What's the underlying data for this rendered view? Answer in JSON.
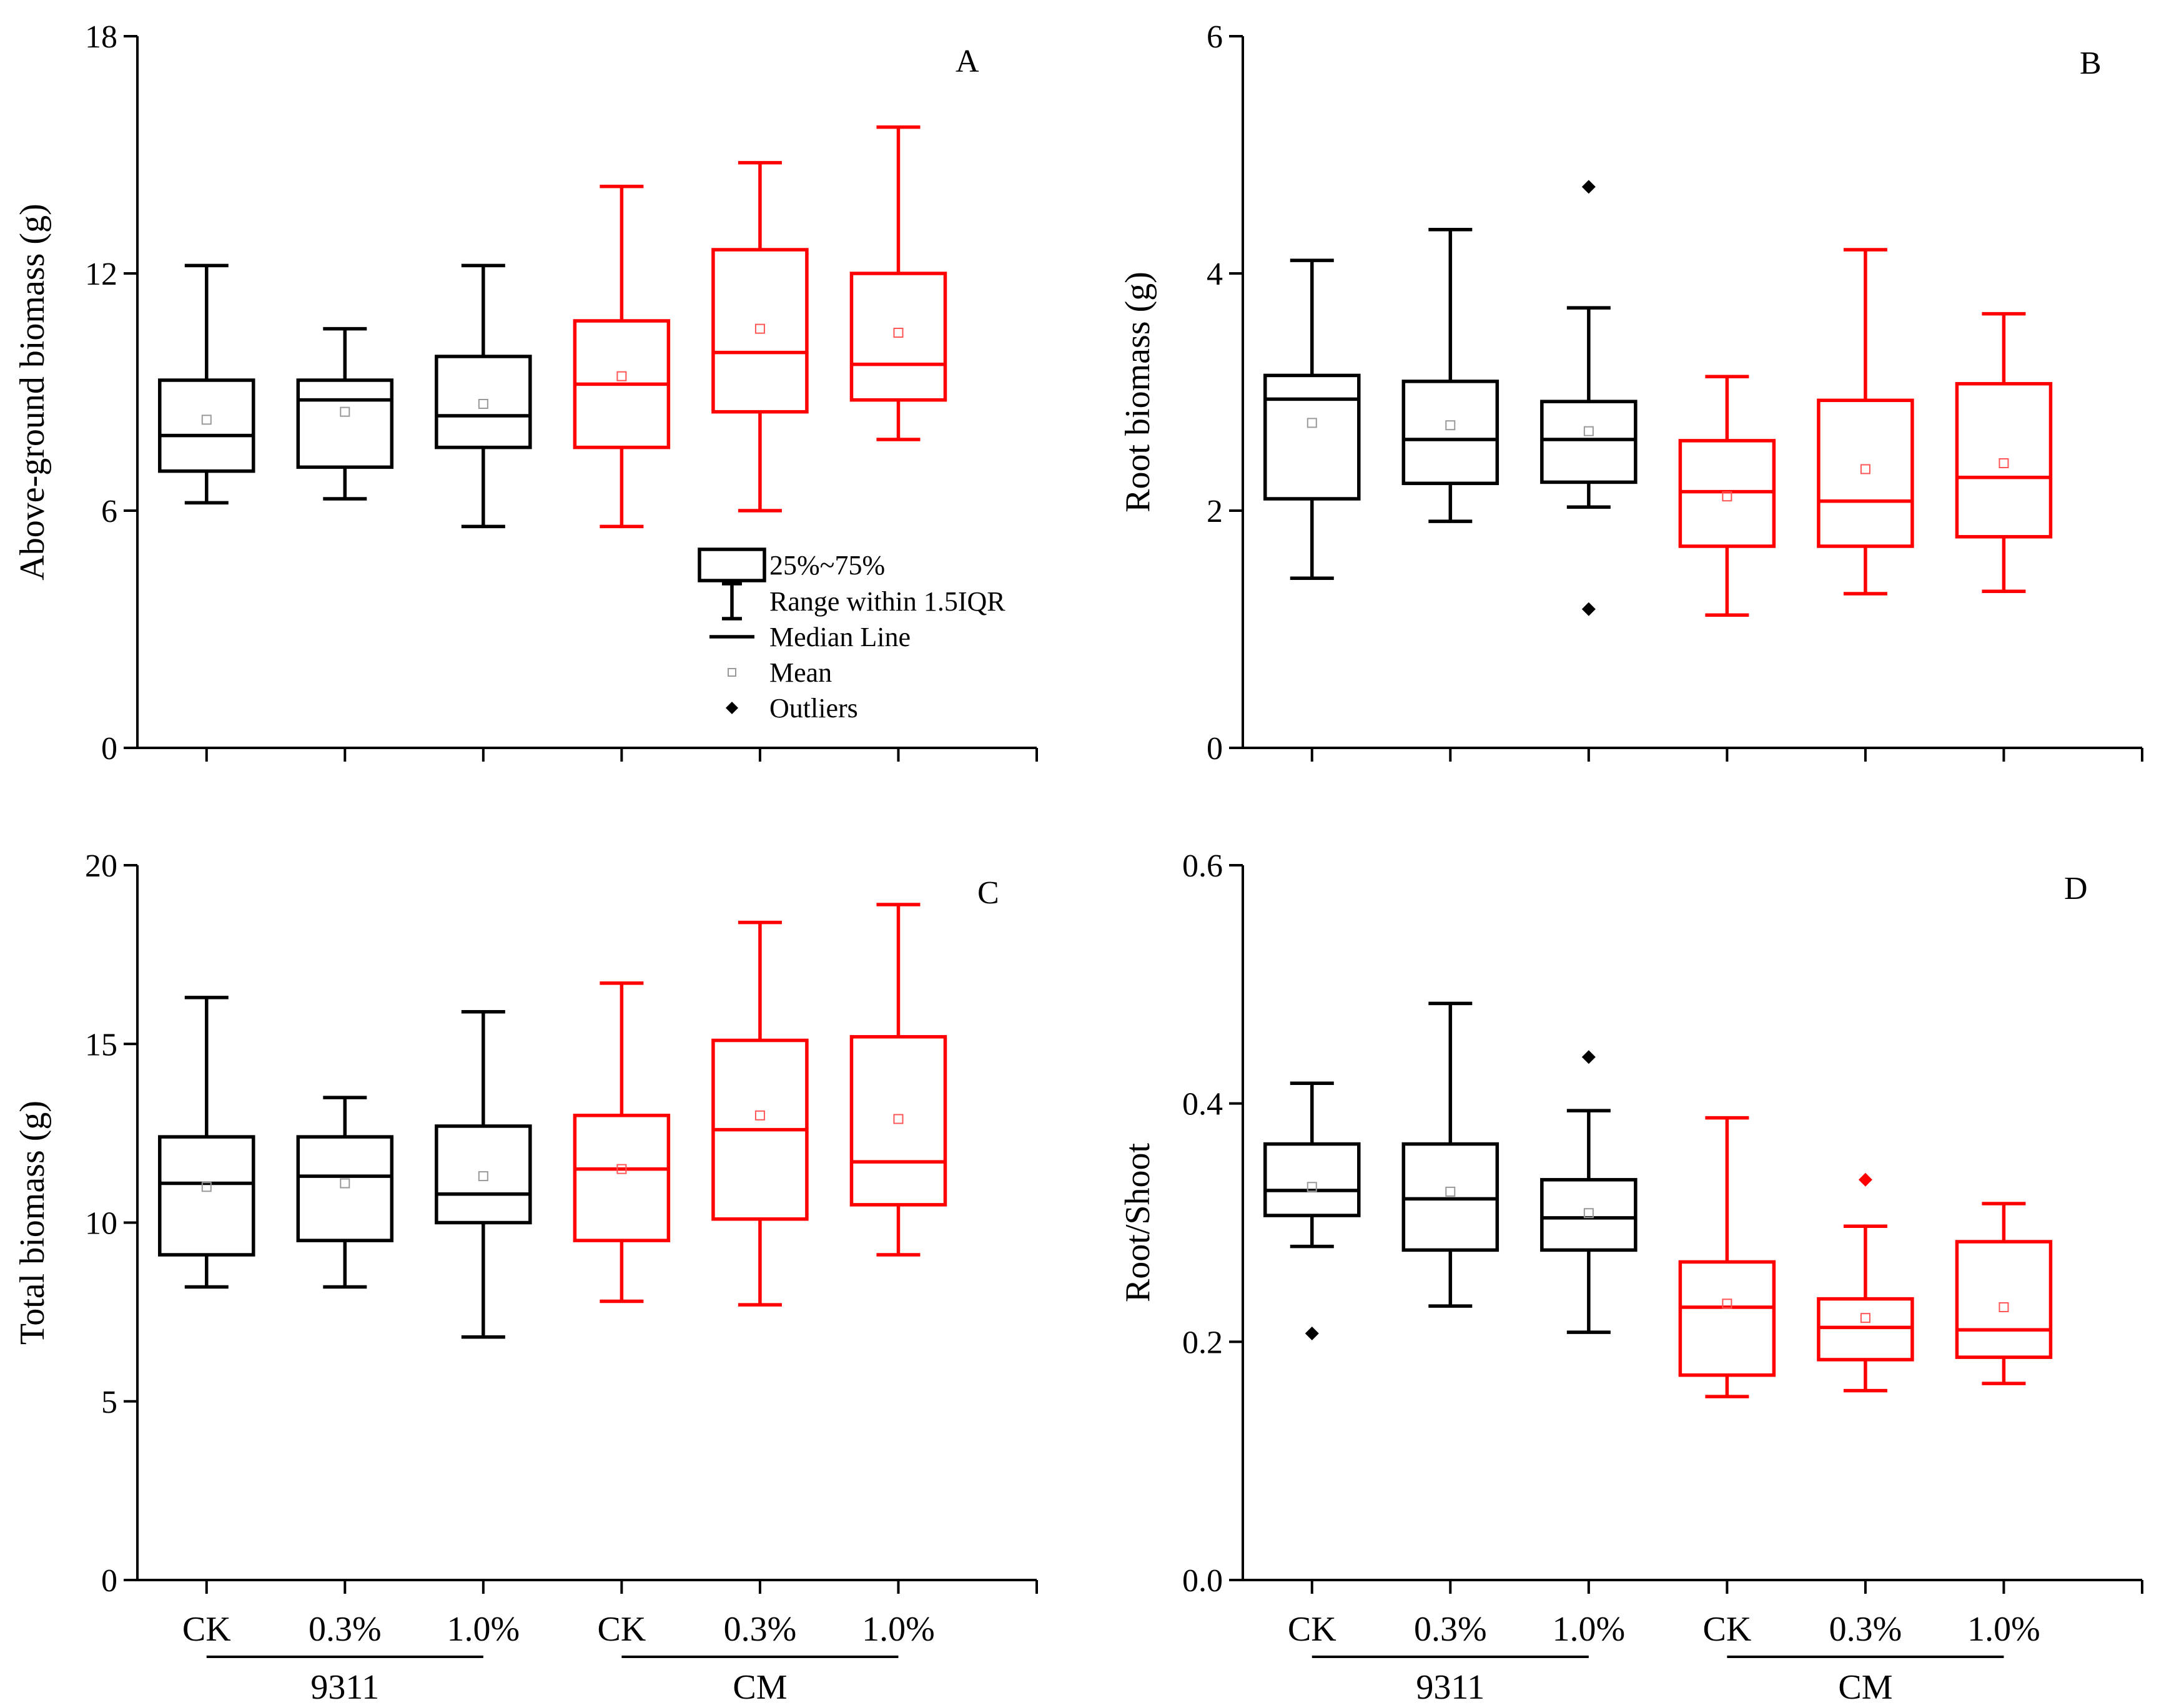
{
  "figure": {
    "colors": {
      "group_9311": "#000000",
      "group_CM": "#ff0000",
      "mean_marker": "#999999"
    },
    "legend": [
      {
        "key": "box",
        "label": "25%~75%"
      },
      {
        "key": "whisker",
        "label": "Range within 1.5IQR"
      },
      {
        "key": "median",
        "label": "Median Line"
      },
      {
        "key": "mean",
        "label": "Mean"
      },
      {
        "key": "outlier",
        "label": "Outliers"
      }
    ],
    "categories": [
      "CK",
      "0.3%",
      "1.0%",
      "CK",
      "0.3%",
      "1.0%"
    ],
    "groups": [
      {
        "label": "9311",
        "color_key": "group_9311",
        "members": [
          0,
          1,
          2
        ]
      },
      {
        "label": "CM",
        "color_key": "group_CM",
        "members": [
          3,
          4,
          5
        ]
      }
    ]
  },
  "chart_data": [
    {
      "panel": "A",
      "type": "box",
      "ylabel": "Above-ground biomass (g)",
      "ylim": [
        0,
        18
      ],
      "yticks": [
        "0",
        "6",
        "12",
        "18"
      ],
      "show_category_labels": false,
      "series": [
        {
          "category": "CK",
          "group": "9311",
          "min": 6.2,
          "q1": 7.0,
          "median": 7.9,
          "q3": 9.3,
          "max": 12.2,
          "mean": 8.3,
          "outliers": []
        },
        {
          "category": "0.3%",
          "group": "9311",
          "min": 6.3,
          "q1": 7.1,
          "median": 8.8,
          "q3": 9.3,
          "max": 10.6,
          "mean": 8.5,
          "outliers": []
        },
        {
          "category": "1.0%",
          "group": "9311",
          "min": 5.6,
          "q1": 7.6,
          "median": 8.4,
          "q3": 9.9,
          "max": 12.2,
          "mean": 8.7,
          "outliers": []
        },
        {
          "category": "CK",
          "group": "CM",
          "min": 5.6,
          "q1": 7.6,
          "median": 9.2,
          "q3": 10.8,
          "max": 14.2,
          "mean": 9.4,
          "outliers": []
        },
        {
          "category": "0.3%",
          "group": "CM",
          "min": 6.0,
          "q1": 8.5,
          "median": 10.0,
          "q3": 12.6,
          "max": 14.8,
          "mean": 10.6,
          "outliers": []
        },
        {
          "category": "1.0%",
          "group": "CM",
          "min": 7.8,
          "q1": 8.8,
          "median": 9.7,
          "q3": 12.0,
          "max": 15.7,
          "mean": 10.5,
          "outliers": []
        }
      ]
    },
    {
      "panel": "B",
      "type": "box",
      "ylabel": "Root biomass (g)",
      "ylim": [
        0,
        6
      ],
      "yticks": [
        "0",
        "2",
        "4",
        "6"
      ],
      "show_category_labels": false,
      "series": [
        {
          "category": "CK",
          "group": "9311",
          "min": 1.43,
          "q1": 2.1,
          "median": 2.94,
          "q3": 3.14,
          "max": 4.11,
          "mean": 2.74,
          "outliers": []
        },
        {
          "category": "0.3%",
          "group": "9311",
          "min": 1.91,
          "q1": 2.23,
          "median": 2.6,
          "q3": 3.09,
          "max": 4.37,
          "mean": 2.72,
          "outliers": []
        },
        {
          "category": "1.0%",
          "group": "9311",
          "min": 2.03,
          "q1": 2.24,
          "median": 2.6,
          "q3": 2.92,
          "max": 3.71,
          "mean": 2.67,
          "outliers": [
            4.73,
            1.17
          ]
        },
        {
          "category": "CK",
          "group": "CM",
          "min": 1.12,
          "q1": 1.7,
          "median": 2.16,
          "q3": 2.59,
          "max": 3.13,
          "mean": 2.12,
          "outliers": []
        },
        {
          "category": "0.3%",
          "group": "CM",
          "min": 1.3,
          "q1": 1.7,
          "median": 2.08,
          "q3": 2.93,
          "max": 4.2,
          "mean": 2.35,
          "outliers": []
        },
        {
          "category": "1.0%",
          "group": "CM",
          "min": 1.32,
          "q1": 1.78,
          "median": 2.28,
          "q3": 3.07,
          "max": 3.66,
          "mean": 2.4,
          "outliers": []
        }
      ]
    },
    {
      "panel": "C",
      "type": "box",
      "ylabel": "Total biomass (g)",
      "ylim": [
        0,
        20
      ],
      "yticks": [
        "0",
        "5",
        "10",
        "15",
        "20"
      ],
      "show_category_labels": true,
      "series": [
        {
          "category": "CK",
          "group": "9311",
          "min": 8.2,
          "q1": 9.1,
          "median": 11.1,
          "q3": 12.4,
          "max": 16.3,
          "mean": 11.0,
          "outliers": []
        },
        {
          "category": "0.3%",
          "group": "9311",
          "min": 8.2,
          "q1": 9.5,
          "median": 11.3,
          "q3": 12.4,
          "max": 13.5,
          "mean": 11.1,
          "outliers": []
        },
        {
          "category": "1.0%",
          "group": "9311",
          "min": 6.8,
          "q1": 10.0,
          "median": 10.8,
          "q3": 12.7,
          "max": 15.9,
          "mean": 11.3,
          "outliers": []
        },
        {
          "category": "CK",
          "group": "CM",
          "min": 7.8,
          "q1": 9.5,
          "median": 11.5,
          "q3": 13.0,
          "max": 16.7,
          "mean": 11.5,
          "outliers": []
        },
        {
          "category": "0.3%",
          "group": "CM",
          "min": 7.7,
          "q1": 10.1,
          "median": 12.6,
          "q3": 15.1,
          "max": 18.4,
          "mean": 13.0,
          "outliers": []
        },
        {
          "category": "1.0%",
          "group": "CM",
          "min": 9.1,
          "q1": 10.5,
          "median": 11.7,
          "q3": 15.2,
          "max": 18.9,
          "mean": 12.9,
          "outliers": []
        }
      ]
    },
    {
      "panel": "D",
      "type": "box",
      "ylabel": "Root/Shoot",
      "ylim": [
        0,
        0.6
      ],
      "yticks": [
        "0.0",
        "0.2",
        "0.4",
        "0.6"
      ],
      "show_category_labels": true,
      "series": [
        {
          "category": "CK",
          "group": "9311",
          "min": 0.28,
          "q1": 0.306,
          "median": 0.327,
          "q3": 0.366,
          "max": 0.417,
          "mean": 0.33,
          "outliers": [
            0.207
          ]
        },
        {
          "category": "0.3%",
          "group": "9311",
          "min": 0.23,
          "q1": 0.277,
          "median": 0.32,
          "q3": 0.366,
          "max": 0.484,
          "mean": 0.326,
          "outliers": []
        },
        {
          "category": "1.0%",
          "group": "9311",
          "min": 0.208,
          "q1": 0.277,
          "median": 0.304,
          "q3": 0.336,
          "max": 0.394,
          "mean": 0.308,
          "outliers": [
            0.439
          ]
        },
        {
          "category": "CK",
          "group": "CM",
          "min": 0.154,
          "q1": 0.172,
          "median": 0.229,
          "q3": 0.267,
          "max": 0.388,
          "mean": 0.232,
          "outliers": []
        },
        {
          "category": "0.3%",
          "group": "CM",
          "min": 0.159,
          "q1": 0.185,
          "median": 0.212,
          "q3": 0.236,
          "max": 0.297,
          "mean": 0.22,
          "outliers": [
            0.336
          ]
        },
        {
          "category": "1.0%",
          "group": "CM",
          "min": 0.165,
          "q1": 0.187,
          "median": 0.21,
          "q3": 0.284,
          "max": 0.316,
          "mean": 0.229,
          "outliers": []
        }
      ]
    }
  ]
}
